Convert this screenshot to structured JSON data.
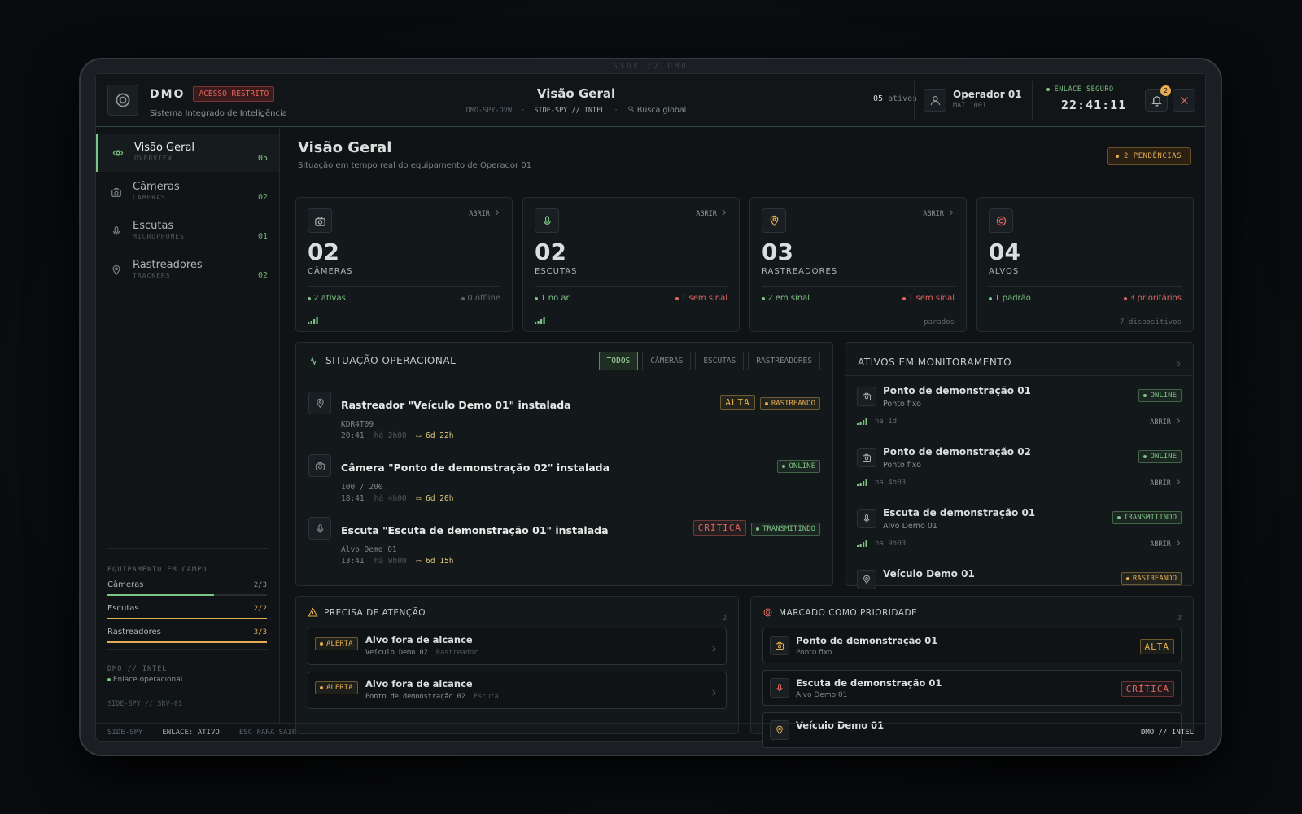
{
  "device": {
    "label": "SIDE // DMO"
  },
  "header": {
    "brand": "DMO",
    "badge": "ACESSO RESTRITO",
    "subtitle": "Sistema Integrado de Inteligência",
    "title": "Visão Geral",
    "crumbs": [
      "DMO-SPY-OVW",
      "SIDE-SPY // INTEL"
    ],
    "search": "Busca global",
    "assets_count": "05",
    "assets_label": "ativos",
    "operator": "Operador 01",
    "operator_id": "MAT 1001",
    "link": "ENLACE SEGURO",
    "clock": "22:41:11",
    "notifications": "2"
  },
  "sidebar": {
    "nav": [
      {
        "label": "Visão Geral",
        "sub": "OVERVIEW",
        "count": "05",
        "icon": "eye",
        "active": true
      },
      {
        "label": "Câmeras",
        "sub": "CAMERAS",
        "count": "02",
        "icon": "camera",
        "active": false
      },
      {
        "label": "Escutas",
        "sub": "MICROPHONES",
        "count": "01",
        "icon": "mic",
        "active": false
      },
      {
        "label": "Rastreadores",
        "sub": "TRACKERS",
        "count": "02",
        "icon": "pin",
        "active": false
      }
    ],
    "field": {
      "title": "EQUIPAMENTO EM CAMPO",
      "items": [
        {
          "label": "Câmeras",
          "value": "2/3",
          "color": "#7cc483"
        },
        {
          "label": "Escutas",
          "value": "2/2",
          "color": "#e3ad52"
        },
        {
          "label": "Rastreadores",
          "value": "3/3",
          "color": "#e3ad52"
        }
      ]
    },
    "footer": {
      "title": "DMO // INTEL",
      "status": "Enlace operacional",
      "server": "SIDE-SPY // SRV-01"
    }
  },
  "main": {
    "title": "Visão Geral",
    "subtitle": "Situação em tempo real do equipamento de Operador 01",
    "pending": "2 PENDÊNCIAS"
  },
  "cards": [
    {
      "icon": "camera",
      "icon_color": "#a8b3aa",
      "open": "ABRIR",
      "count": "02",
      "label": "CÂMERAS",
      "left": "2 ativas",
      "left_color": "#7cc483",
      "right": "0 offline",
      "right_color": "#5d666a",
      "signal": true
    },
    {
      "icon": "mic",
      "icon_color": "#7cc483",
      "open": "ABRIR",
      "count": "02",
      "label": "ESCUTAS",
      "left": "1 no ar",
      "left_color": "#7cc483",
      "right": "1 sem sinal",
      "right_color": "#e0655d",
      "signal": true
    },
    {
      "icon": "pin",
      "icon_color": "#e3ad52",
      "open": "ABRIR",
      "count": "03",
      "label": "RASTREADORES",
      "left": "2 em sinal",
      "left_color": "#7cc483",
      "right": "1 sem sinal",
      "right_color": "#e0655d",
      "extra": "parados"
    },
    {
      "icon": "target",
      "icon_color": "#e0655d",
      "count": "04",
      "label": "ALVOS",
      "left": "1 padrão",
      "left_color": "#7cc483",
      "right": "3 prioritários",
      "right_color": "#e0655d",
      "extra": "7 dispositivos"
    }
  ],
  "situation": {
    "title": "SITUAÇÃO OPERACIONAL",
    "filters": [
      "TODOS",
      "CÂMERAS",
      "ESCUTAS",
      "RASTREADORES"
    ],
    "events": [
      {
        "icon": "pin",
        "title": "Rastreador \"Veículo Demo 01\" instalada",
        "sub": "KDR4T09",
        "time": "20:41",
        "ago": "há 2h00",
        "duration": "6d 22h",
        "tags": [
          {
            "text": "ALTA",
            "color": "#e3ad52",
            "dot": false
          },
          {
            "text": "RASTREANDO",
            "color": "#e3ad52",
            "dot": true
          }
        ]
      },
      {
        "icon": "camera",
        "title": "Câmera \"Ponto de demonstração 02\" instalada",
        "sub": "100 / 200",
        "time": "18:41",
        "ago": "há 4h00",
        "duration": "6d 20h",
        "tags": [
          {
            "text": "ONLINE",
            "color": "#7cc483",
            "dot": true
          }
        ]
      },
      {
        "icon": "mic",
        "title": "Escuta \"Escuta de demonstração 01\" instalada",
        "sub": "Alvo Demo 01",
        "time": "13:41",
        "ago": "há 9h00",
        "duration": "6d 15h",
        "tags": [
          {
            "text": "CRÍTICA",
            "color": "#e0655d",
            "dot": false
          },
          {
            "text": "TRANSMITINDO",
            "color": "#7cc483",
            "dot": true
          }
        ]
      }
    ]
  },
  "assets": {
    "title": "ATIVOS EM MONITORAMENTO",
    "count": "5",
    "items": [
      {
        "icon": "camera",
        "name": "Ponto de demonstração 01",
        "sub": "Ponto fixo",
        "ago": "há 1d",
        "open": "ABRIR",
        "tag": {
          "text": "ONLINE",
          "color": "#7cc483"
        }
      },
      {
        "icon": "camera",
        "name": "Ponto de demonstração 02",
        "sub": "Ponto fixo",
        "ago": "há 4h00",
        "open": "ABRIR",
        "tag": {
          "text": "ONLINE",
          "color": "#7cc483"
        }
      },
      {
        "icon": "mic",
        "name": "Escuta de demonstração 01",
        "sub": "Alvo Demo 01",
        "ago": "há 9h00",
        "open": "ABRIR",
        "tag": {
          "text": "TRANSMITINDO",
          "color": "#7cc483"
        }
      },
      {
        "icon": "pin",
        "name": "Veículo Demo 01",
        "tag": {
          "text": "RASTREANDO",
          "color": "#e3ad52"
        }
      }
    ]
  },
  "attention": {
    "title": "PRECISA DE ATENÇÃO",
    "count": "2",
    "items": [
      {
        "tag": "ALERTA",
        "title": "Alvo fora de alcance",
        "sub": "Veículo Demo 02",
        "kind": "Rastreador"
      },
      {
        "tag": "ALERTA",
        "title": "Alvo fora de alcance",
        "sub": "Ponto de demonstração 02",
        "kind": "Escuta"
      }
    ]
  },
  "priority": {
    "title": "MARCADO COMO PRIORIDADE",
    "count": "3",
    "items": [
      {
        "icon": "camera",
        "icon_color": "#e3ad52",
        "title": "Ponto de demonstração 01",
        "sub": "Ponto fixo",
        "tag": {
          "text": "ALTA",
          "color": "#e3ad52"
        }
      },
      {
        "icon": "mic",
        "icon_color": "#e0655d",
        "title": "Escuta de demonstração 01",
        "sub": "Alvo Demo 01",
        "tag": {
          "text": "CRÍTICA",
          "color": "#e0655d"
        }
      },
      {
        "icon": "pin",
        "icon_color": "#e3ad52",
        "title": "Veículo Demo 01"
      }
    ]
  },
  "statusbar": {
    "left": [
      "SIDE-SPY",
      "ENLACE: ATIVO",
      "ESC PARA SAIR"
    ],
    "right": "DMO // INTEL"
  }
}
